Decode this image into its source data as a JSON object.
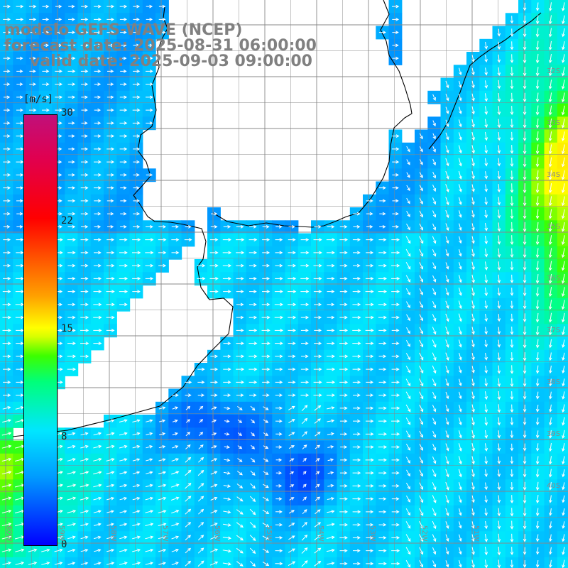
{
  "title": {
    "line1": "modelo GEFS-WAVE (NCEP)",
    "line2": "forecast date: 2025-08-31 06:00:00",
    "line3": "valid date: 2025-09-03 09:00:00"
  },
  "colorbar": {
    "unit": "[m/s]",
    "min": 0,
    "max": 30,
    "ticks": [
      "30",
      "22",
      "15",
      "8",
      "0"
    ],
    "tick_values": [
      30,
      22,
      15,
      8,
      0
    ],
    "colors": [
      "#0000ff",
      "#009cff",
      "#00e6ff",
      "#00ff7a",
      "#3cff00",
      "#ffff00",
      "#ff5a00",
      "#ff0000",
      "#c0107a"
    ]
  },
  "lat_labels": [
    "32S",
    "33S",
    "34S",
    "35S",
    "36S",
    "37S",
    "38S",
    "39S",
    "40S"
  ],
  "lat_values": [
    32,
    33,
    34,
    35,
    36,
    37,
    38,
    39,
    40
  ],
  "lon_labels": [
    "60W",
    "59W",
    "58W",
    "57W",
    "56W",
    "55W",
    "54W",
    "53W",
    "52W",
    "51W"
  ],
  "lon_values": [
    60,
    59,
    58,
    57,
    56,
    55,
    54,
    53,
    52,
    51
  ],
  "field": "surface wind speed and direction"
}
